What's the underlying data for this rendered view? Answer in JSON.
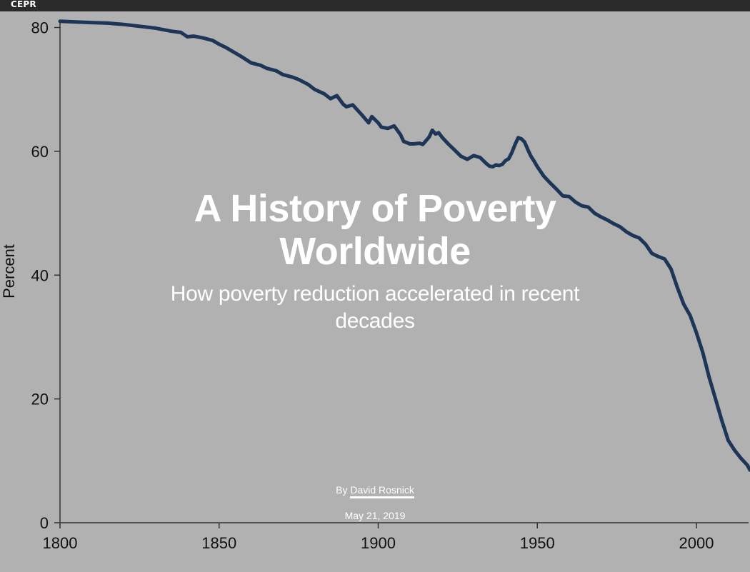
{
  "header": {
    "brand": "CEPR"
  },
  "article": {
    "title_line1": "A History of Poverty",
    "title_line2": "Worldwide",
    "subtitle_line1": "How poverty reduction accelerated in recent",
    "subtitle_line2": "decades",
    "byline_prefix": "By",
    "author": "David Rosnick",
    "date": "May 21, 2019"
  },
  "colors": {
    "background": "#b1b1b1",
    "line": "#1d3557",
    "text": "#ffffff",
    "topbar": "#2b2b2b"
  },
  "chart_data": {
    "type": "line",
    "title": "",
    "xlabel": "",
    "ylabel": "Percent",
    "xlim": [
      1800,
      2017
    ],
    "ylim": [
      0,
      80
    ],
    "x_ticks": [
      1800,
      1850,
      1900,
      1950,
      2000
    ],
    "y_ticks": [
      0,
      20,
      40,
      60,
      80
    ],
    "grid": false,
    "series": [
      {
        "x": [
          1800,
          1805,
          1810,
          1815,
          1820,
          1825,
          1830,
          1835,
          1838,
          1840,
          1842,
          1845,
          1848,
          1850,
          1852,
          1855,
          1857,
          1860,
          1863,
          1865,
          1868,
          1870,
          1873,
          1875,
          1878,
          1880,
          1883,
          1885,
          1887,
          1889,
          1890,
          1892,
          1895,
          1897,
          1898,
          1900,
          1901,
          1903,
          1905,
          1907,
          1908,
          1910,
          1911,
          1913,
          1914,
          1916,
          1917,
          1918,
          1919,
          1920,
          1922,
          1924,
          1926,
          1928,
          1930,
          1932,
          1934,
          1935,
          1936,
          1937,
          1938,
          1939,
          1940,
          1941,
          1942,
          1943,
          1944,
          1945,
          1946,
          1947,
          1948,
          1949,
          1950,
          1952,
          1954,
          1956,
          1958,
          1960,
          1962,
          1964,
          1966,
          1968,
          1970,
          1972,
          1974,
          1976,
          1978,
          1980,
          1982,
          1984,
          1986,
          1988,
          1990,
          1992,
          1994,
          1996,
          1998,
          2000,
          2002,
          2004,
          2006,
          2008,
          2010,
          2012,
          2014,
          2016,
          2017
        ],
        "y": [
          81.0,
          80.9,
          80.8,
          80.7,
          80.5,
          80.2,
          79.9,
          79.4,
          79.2,
          78.5,
          78.6,
          78.3,
          77.9,
          77.3,
          76.8,
          75.9,
          75.3,
          74.3,
          73.9,
          73.4,
          73.0,
          72.4,
          72.0,
          71.6,
          70.8,
          70.0,
          69.3,
          68.5,
          69.0,
          67.6,
          67.2,
          67.5,
          65.8,
          64.6,
          65.6,
          64.6,
          63.9,
          63.7,
          64.1,
          62.7,
          61.6,
          61.2,
          61.2,
          61.3,
          61.1,
          62.3,
          63.4,
          62.8,
          63.0,
          62.3,
          61.2,
          60.2,
          59.2,
          58.7,
          59.3,
          59.0,
          58.0,
          57.6,
          57.5,
          57.8,
          57.7,
          57.9,
          58.5,
          58.8,
          59.8,
          61.1,
          62.2,
          62.0,
          61.5,
          60.3,
          59.2,
          58.4,
          57.5,
          56.0,
          54.9,
          53.9,
          52.8,
          52.7,
          51.8,
          51.2,
          51.0,
          50.0,
          49.4,
          48.9,
          48.3,
          47.8,
          47.0,
          46.4,
          46.0,
          45.0,
          43.5,
          43.0,
          42.6,
          41.0,
          38.0,
          35.3,
          33.5,
          30.7,
          27.5,
          23.5,
          20.0,
          16.5,
          13.3,
          11.7,
          10.4,
          9.3,
          8.5
        ]
      }
    ]
  }
}
